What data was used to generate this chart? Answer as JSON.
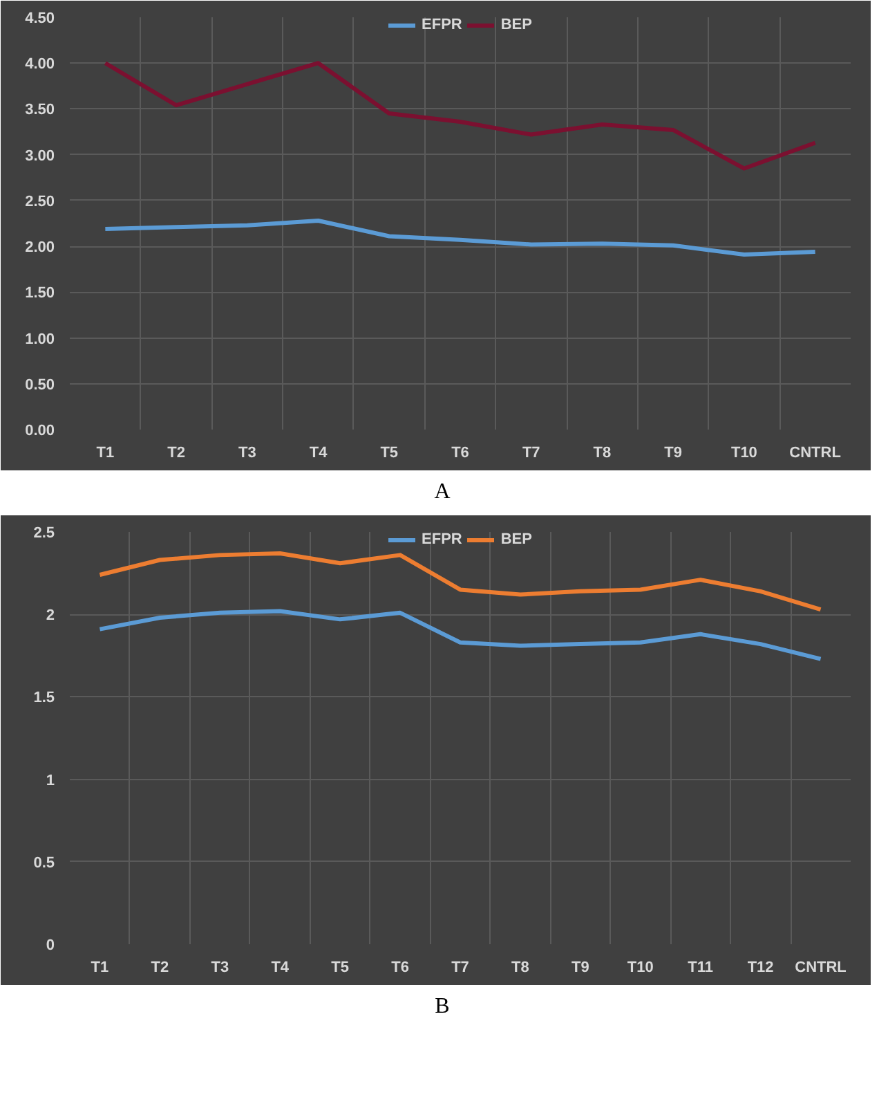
{
  "chart_data": [
    {
      "type": "line",
      "annotations": [
        "A"
      ],
      "categories": [
        "T1",
        "T2",
        "T3",
        "T4",
        "T5",
        "T6",
        "T7",
        "T8",
        "T9",
        "T10",
        "CNTRL"
      ],
      "series": [
        {
          "name": "EFPR",
          "color": "#5b9bd5",
          "values": [
            2.19,
            2.21,
            2.23,
            2.28,
            2.11,
            2.07,
            2.02,
            2.03,
            2.01,
            1.91,
            1.94
          ]
        },
        {
          "name": "BEP",
          "color": "#7b1030",
          "values": [
            4.0,
            3.54,
            3.77,
            4.0,
            3.45,
            3.36,
            3.22,
            3.33,
            3.27,
            2.85,
            3.13
          ]
        }
      ],
      "ylim": [
        0,
        4.5
      ],
      "yticks": [
        {
          "value": 0,
          "label": "0.00"
        },
        {
          "value": 0.5,
          "label": "0.50"
        },
        {
          "value": 1,
          "label": "1.00"
        },
        {
          "value": 1.5,
          "label": "1.50"
        },
        {
          "value": 2,
          "label": "2.00"
        },
        {
          "value": 2.5,
          "label": "2.50"
        },
        {
          "value": 3,
          "label": "3.00"
        },
        {
          "value": 3.5,
          "label": "3.50"
        },
        {
          "value": 4,
          "label": "4.00"
        },
        {
          "value": 4.5,
          "label": "4.50"
        }
      ],
      "grid": true,
      "legend": "top"
    },
    {
      "type": "line",
      "annotations": [
        "B"
      ],
      "categories": [
        "T1",
        "T2",
        "T3",
        "T4",
        "T5",
        "T6",
        "T7",
        "T8",
        "T9",
        "T10",
        "T11",
        "T12",
        "CNTRL"
      ],
      "series": [
        {
          "name": "EFPR",
          "color": "#5b9bd5",
          "values": [
            1.91,
            1.98,
            2.01,
            2.02,
            1.97,
            2.01,
            1.83,
            1.81,
            1.82,
            1.83,
            1.88,
            1.82,
            1.73
          ]
        },
        {
          "name": "BEP",
          "color": "#ed7d31",
          "values": [
            2.24,
            2.33,
            2.36,
            2.37,
            2.31,
            2.36,
            2.15,
            2.12,
            2.14,
            2.15,
            2.21,
            2.14,
            2.03
          ]
        }
      ],
      "ylim": [
        0,
        2.5
      ],
      "yticks": [
        0,
        0.5,
        1,
        1.5,
        2,
        2.5
      ],
      "grid": true,
      "legend": "top"
    }
  ]
}
